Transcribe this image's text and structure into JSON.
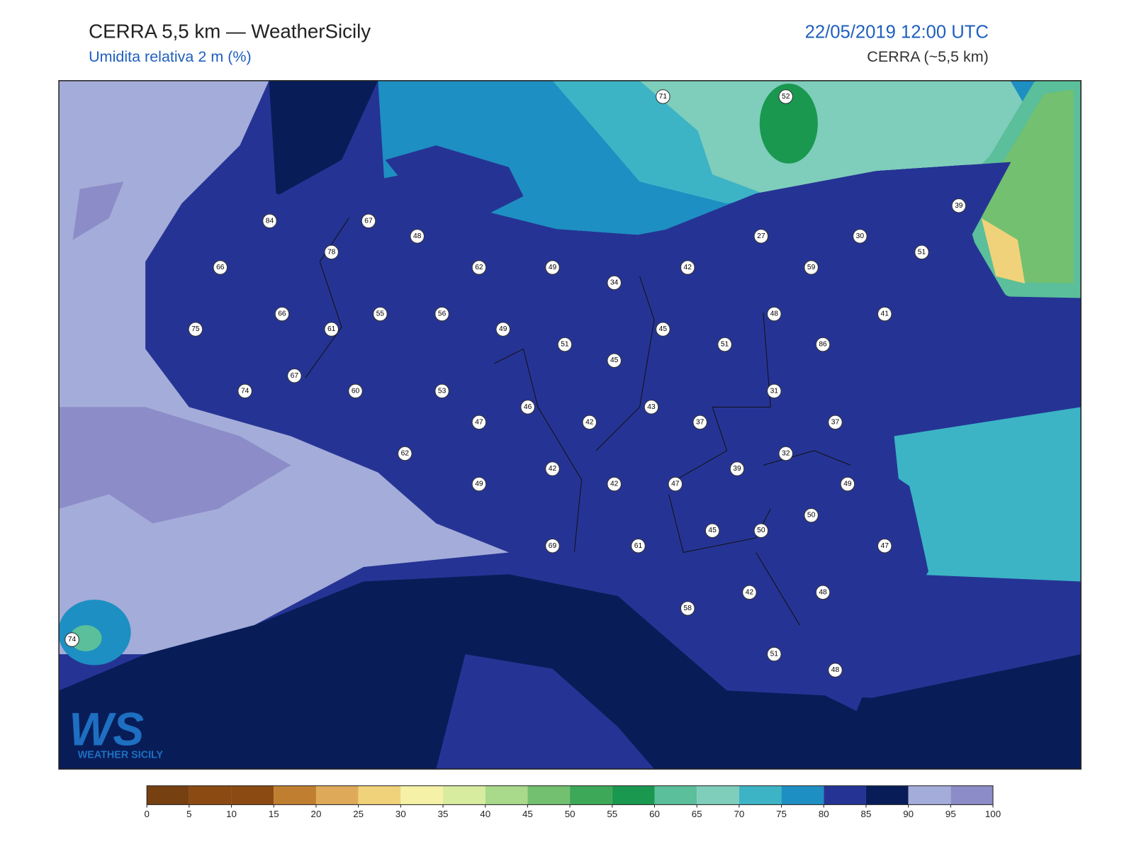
{
  "header": {
    "title": "CERRA 5,5 km — WeatherSicily",
    "subtitle": "Umidita relativa 2 m (%)",
    "datetime": "22/05/2019 12:00 UTC",
    "model": "CERRA (~5,5 km)"
  },
  "stations": [
    71,
    52,
    84,
    67,
    48,
    78,
    66,
    62,
    49,
    42,
    59,
    27,
    30,
    39,
    51,
    34,
    66,
    55,
    56,
    61,
    49,
    45,
    48,
    41,
    75,
    51,
    51,
    86,
    45,
    67,
    60,
    53,
    31,
    74,
    46,
    43,
    47,
    42,
    37,
    37,
    62,
    32,
    42,
    39,
    49,
    42,
    47,
    49,
    50,
    45,
    50,
    61,
    69,
    47,
    42,
    48,
    58,
    51,
    48,
    74
  ],
  "colorbar": {
    "ticks": [
      0,
      5,
      10,
      15,
      20,
      25,
      30,
      35,
      40,
      45,
      50,
      55,
      60,
      65,
      70,
      75,
      80,
      85,
      90,
      95,
      100
    ],
    "colors": [
      "#774010",
      "#8b4a12",
      "#8b4a12",
      "#c07f30",
      "#deaa5a",
      "#f0d27a",
      "#f5f2a8",
      "#d8eca0",
      "#a9d98a",
      "#72c070",
      "#3da858",
      "#1a9850",
      "#5abf9a",
      "#7fcdbb",
      "#3cb4c6",
      "#1e8fc2",
      "#253494",
      "#081d58",
      "#a4acd9",
      "#8c8cc8"
    ]
  },
  "logo": {
    "mark": "WS",
    "text": "WEATHER SICILY"
  }
}
